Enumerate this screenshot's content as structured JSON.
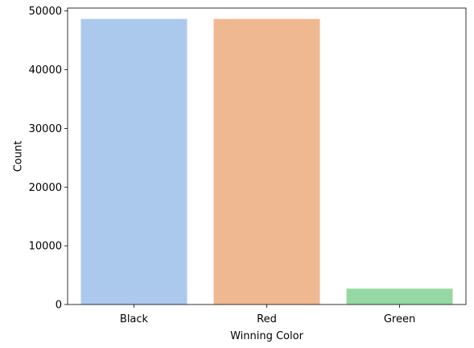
{
  "chart_data": {
    "type": "bar",
    "title": "",
    "xlabel": "Winning Color",
    "ylabel": "Count",
    "categories": [
      "Black",
      "Red",
      "Green"
    ],
    "values": [
      48650,
      48650,
      2700
    ],
    "colors": [
      "#abc9ed",
      "#f0b891",
      "#96d8a3"
    ],
    "ylim": [
      0,
      50500
    ],
    "yticks": [
      0,
      10000,
      20000,
      30000,
      40000,
      50000
    ],
    "ytick_labels": [
      "0",
      "10000",
      "20000",
      "30000",
      "40000",
      "50000"
    ],
    "grid": false,
    "legend": "none"
  }
}
